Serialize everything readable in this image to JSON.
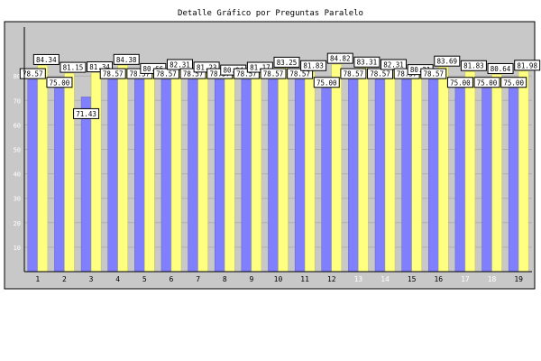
{
  "chart_data": {
    "type": "bar",
    "title": "Detalle Gráfico por Preguntas Paralelo",
    "categories": [
      "1",
      "2",
      "3",
      "4",
      "5",
      "6",
      "7",
      "8",
      "9",
      "10",
      "11",
      "12",
      "13",
      "14",
      "15",
      "16",
      "17",
      "18",
      "19"
    ],
    "series": [
      {
        "values": [
          78.57,
          75.0,
          71.43,
          78.57,
          78.57,
          78.57,
          78.57,
          78.57,
          78.57,
          78.57,
          78.57,
          75.0,
          78.57,
          78.57,
          78.57,
          78.57,
          75.0,
          75.0,
          75.0
        ]
      },
      {
        "values": [
          84.34,
          81.15,
          81.34,
          84.38,
          80.66,
          82.31,
          81.23,
          80.04,
          81.17,
          83.25,
          81.83,
          84.82,
          83.31,
          82.31,
          80.21,
          83.69,
          81.83,
          80.64,
          81.98
        ]
      }
    ],
    "ylim": [
      0,
      100
    ],
    "yticks": [
      10,
      20,
      30,
      40,
      50,
      60,
      70,
      80
    ],
    "colors": {
      "series_a": "#8080ff",
      "series_b": "#ffff80",
      "plot_bg": "#c8c8c8",
      "label_box": "#ffffff",
      "label_border": "#000000",
      "faded_tick": "#ffffff"
    },
    "grid": true
  }
}
